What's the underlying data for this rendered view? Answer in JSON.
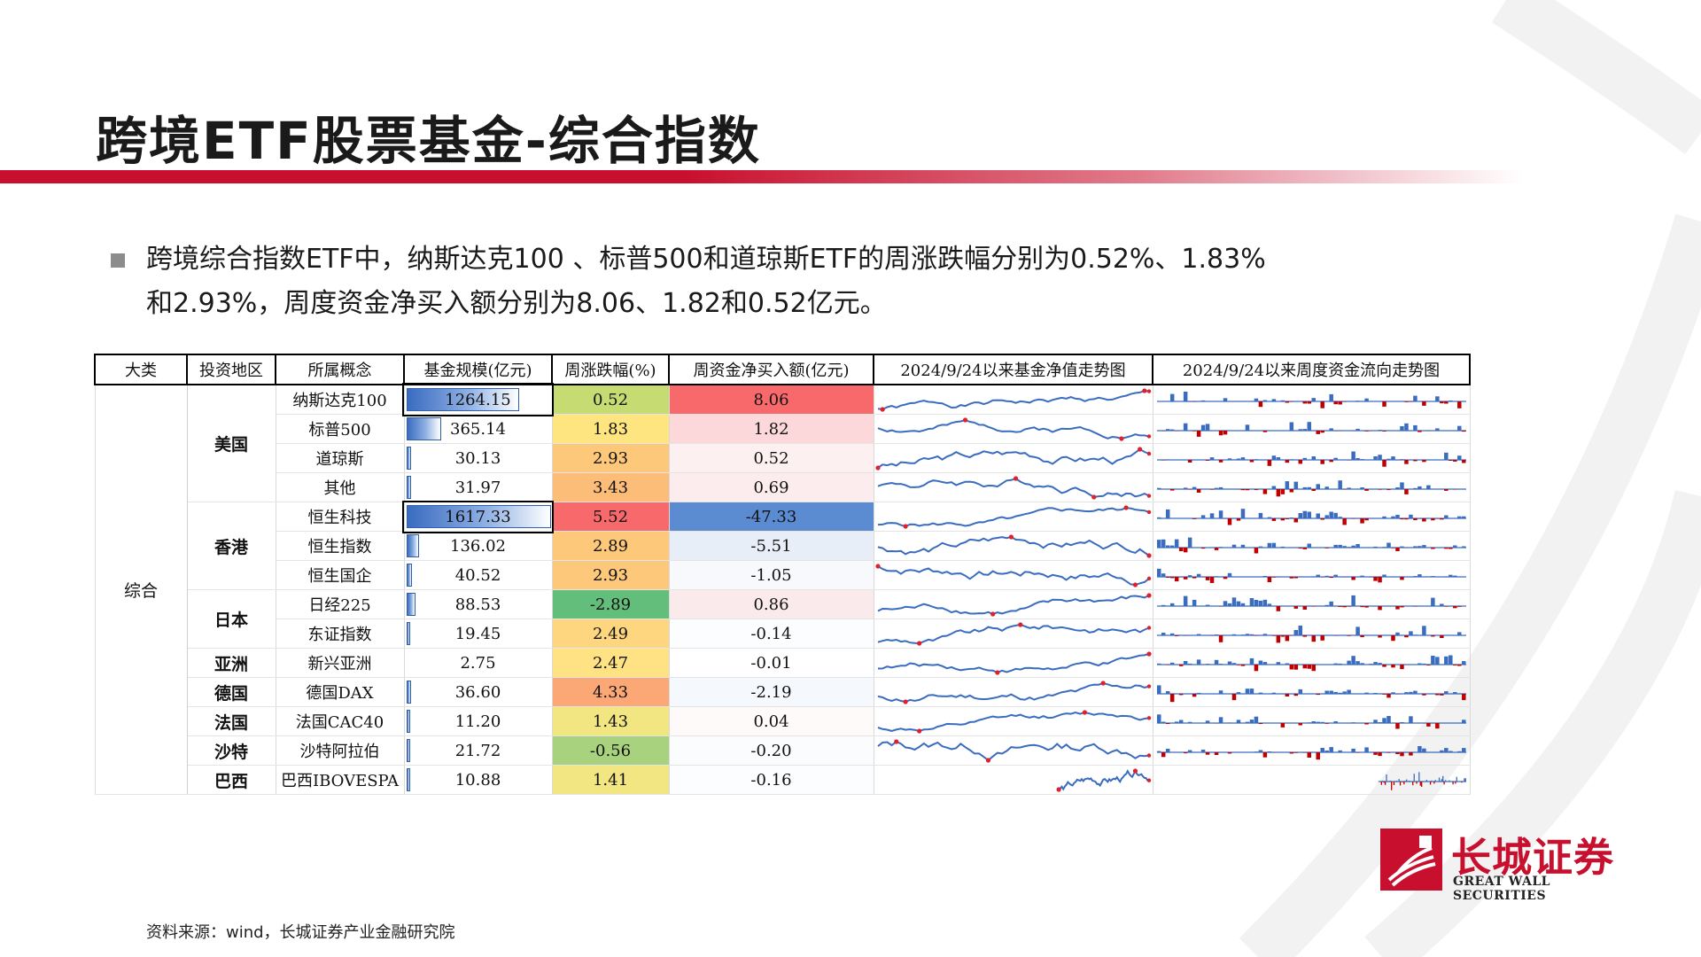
{
  "slide": {
    "title": "跨境ETF股票基金-综合指数",
    "summary_line1": "跨境综合指数ETF中，纳斯达克100 、标普500和道琼斯ETF的周涨跌幅分别为0.52%、1.83%",
    "summary_line2": "和2.93%，周度资金净买入额分别为8.06、1.82和0.52亿元。",
    "source": "资料来源：wind，长城证券产业金融研究院"
  },
  "logo": {
    "cn": "长城证券",
    "en": "GREAT WALL SECURITIES"
  },
  "colors": {
    "brand_red": "#c8102e",
    "bar_blue": "#3a6cc0",
    "line_blue": "#3a6cc0",
    "neg_red": "#c00000"
  },
  "table": {
    "headers": [
      "大类",
      "投资地区",
      "所属概念",
      "基金规模(亿元)",
      "周涨跌幅(%)",
      "周资金净买入额(亿元)",
      "2024/9/24以来基金净值走势图",
      "2024/9/24以来周度资金流向走势图"
    ],
    "category": "综合",
    "rows": [
      {
        "region": "美国",
        "concept": "纳斯达克100",
        "size": "1264.15",
        "size_frac": 0.78,
        "change": "0.52",
        "change_color": "#c6dc72",
        "flow": "8.06",
        "flow_color": "#f8696b",
        "seed": 1
      },
      {
        "region": "",
        "concept": "标普500",
        "size": "365.14",
        "size_frac": 0.23,
        "change": "1.83",
        "change_color": "#ffe580",
        "flow": "1.82",
        "flow_color": "#fcd8da",
        "seed": 2
      },
      {
        "region": "",
        "concept": "道琼斯",
        "size": "30.13",
        "size_frac": 0.02,
        "change": "2.93",
        "change_color": "#fdc87a",
        "flow": "0.52",
        "flow_color": "#fdf0f1",
        "seed": 3
      },
      {
        "region": "",
        "concept": "其他",
        "size": "31.97",
        "size_frac": 0.02,
        "change": "3.43",
        "change_color": "#fcbd78",
        "flow": "0.69",
        "flow_color": "#fcecee",
        "seed": 4
      },
      {
        "region": "香港",
        "concept": "恒生科技",
        "size": "1617.33",
        "size_frac": 1.0,
        "change": "5.52",
        "change_color": "#f8696b",
        "flow": "-47.33",
        "flow_color": "#5b8bd0",
        "seed": 5
      },
      {
        "region": "",
        "concept": "恒生指数",
        "size": "136.02",
        "size_frac": 0.08,
        "change": "2.89",
        "change_color": "#fdc87a",
        "flow": "-5.51",
        "flow_color": "#e8eef8",
        "seed": 6
      },
      {
        "region": "",
        "concept": "恒生国企",
        "size": "40.52",
        "size_frac": 0.025,
        "change": "2.93",
        "change_color": "#fdc87a",
        "flow": "-1.05",
        "flow_color": "#f7f9fd",
        "seed": 7
      },
      {
        "region": "日本",
        "concept": "日经225",
        "size": "88.53",
        "size_frac": 0.055,
        "change": "-2.89",
        "change_color": "#63be7b",
        "flow": "0.86",
        "flow_color": "#fbeaec",
        "seed": 8
      },
      {
        "region": "",
        "concept": "东证指数",
        "size": "19.45",
        "size_frac": 0.012,
        "change": "2.49",
        "change_color": "#fed680",
        "flow": "-0.14",
        "flow_color": "#fcfdfe",
        "seed": 9
      },
      {
        "region": "亚洲",
        "concept": "新兴亚洲",
        "size": "2.75",
        "size_frac": 0.0,
        "change": "2.47",
        "change_color": "#fee283",
        "flow": "-0.01",
        "flow_color": "#ffffff",
        "seed": 10
      },
      {
        "region": "德国",
        "concept": "德国DAX",
        "size": "36.60",
        "size_frac": 0.022,
        "change": "4.33",
        "change_color": "#fba876",
        "flow": "-2.19",
        "flow_color": "#f5f8fc",
        "seed": 11
      },
      {
        "region": "法国",
        "concept": "法国CAC40",
        "size": "11.20",
        "size_frac": 0.007,
        "change": "1.43",
        "change_color": "#f1e682",
        "flow": "0.04",
        "flow_color": "#fefafa",
        "seed": 12
      },
      {
        "region": "沙特",
        "concept": "沙特阿拉伯",
        "size": "21.72",
        "size_frac": 0.013,
        "change": "-0.56",
        "change_color": "#a8d27e",
        "flow": "-0.20",
        "flow_color": "#fbfcfe",
        "seed": 13
      },
      {
        "region": "巴西",
        "concept": "巴西IBOVESPA",
        "size": "10.88",
        "size_frac": 0.007,
        "change": "1.41",
        "change_color": "#f1e682",
        "flow": "-0.16",
        "flow_color": "#fcfdfe",
        "seed": 14
      }
    ]
  }
}
